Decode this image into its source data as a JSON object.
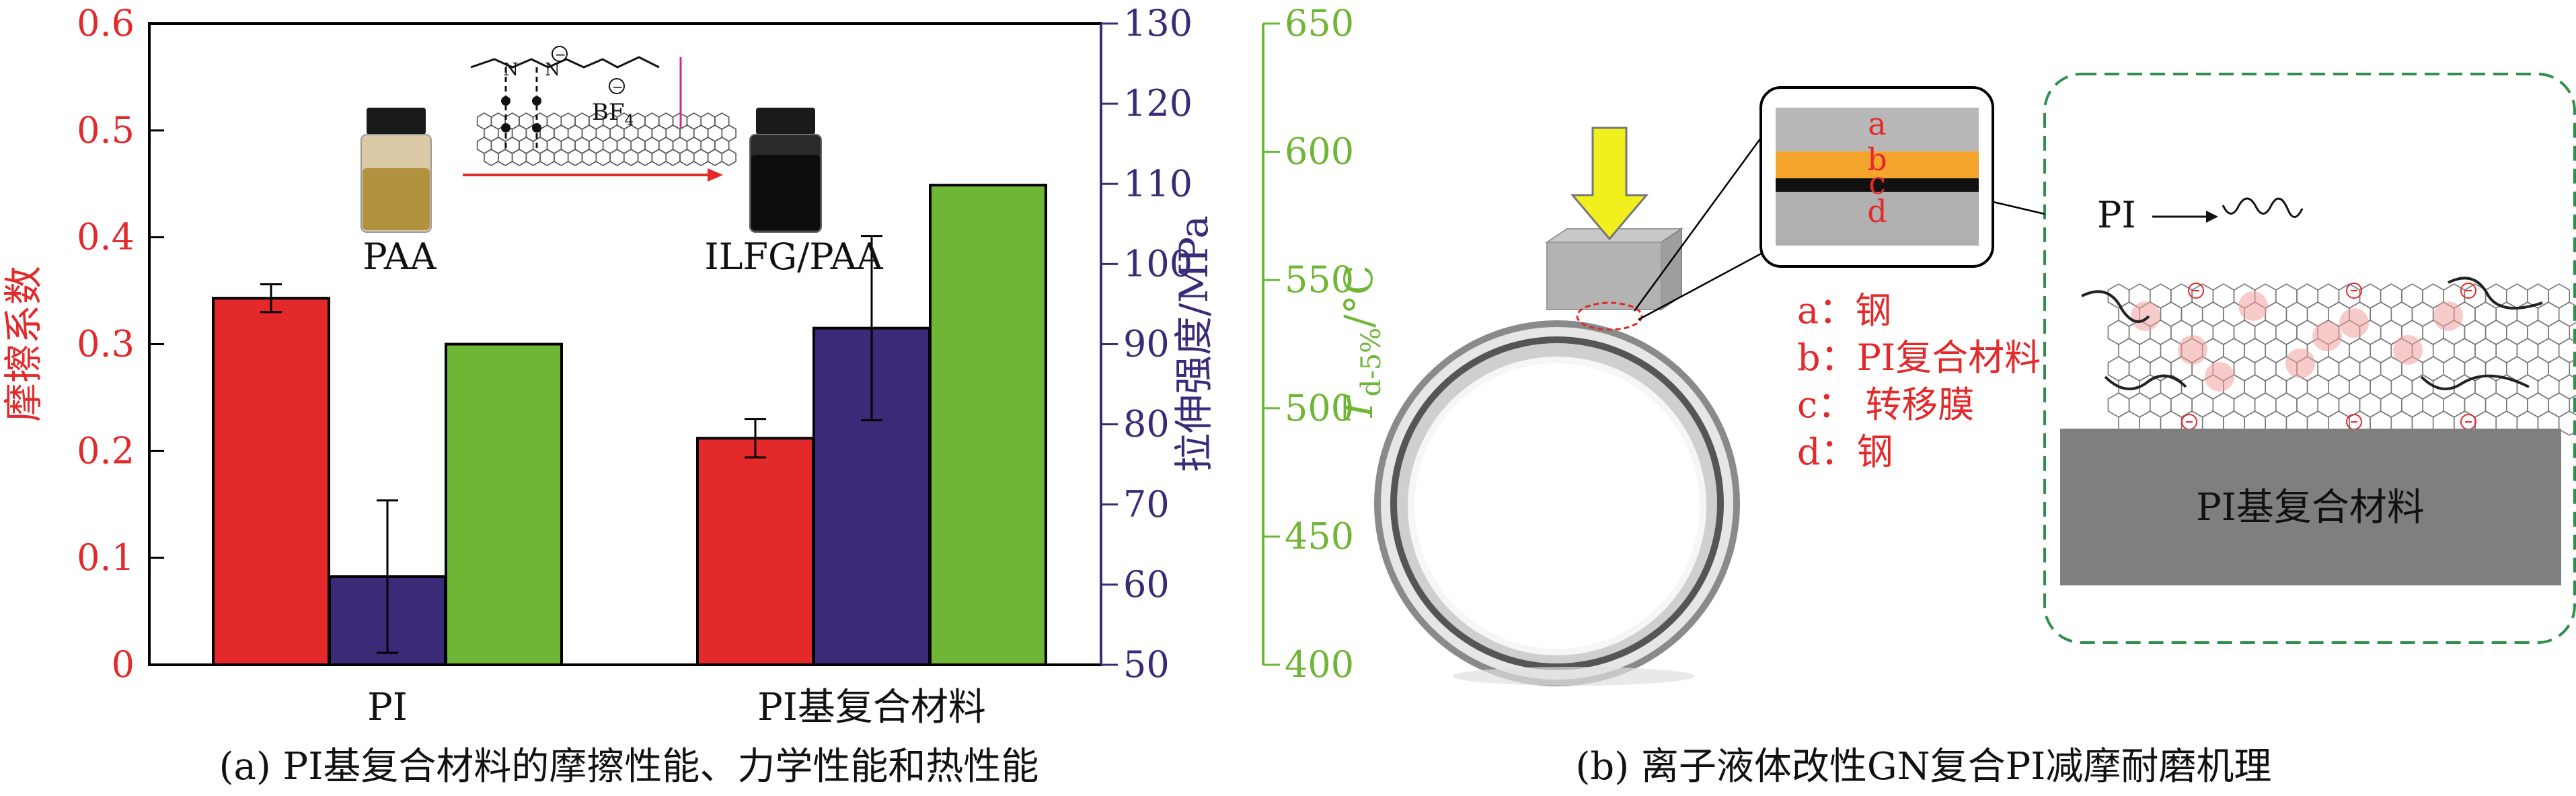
{
  "colors": {
    "friction": "#e3292a",
    "tensile": "#3b2a78",
    "thermal": "#6fb536",
    "red_text": "#e3292a",
    "dash_green": "#2f8f4a"
  },
  "chart_data": {
    "type": "bar",
    "categories": [
      "PI",
      "PI基复合材料"
    ],
    "series": [
      {
        "name": "摩擦系数",
        "axis": "left",
        "values": [
          0.343,
          0.212
        ],
        "error": [
          0.013,
          0.018
        ]
      },
      {
        "name": "拉伸强度/MPa",
        "axis": "right1",
        "values": [
          61.0,
          92.0
        ],
        "error": [
          9.5,
          11.5
        ]
      },
      {
        "name": "Td-5%/°C",
        "axis": "right2",
        "values": [
          525,
          587
        ]
      }
    ],
    "axes": {
      "left": {
        "label": "摩擦系数",
        "ylim": [
          0,
          0.6
        ],
        "ticks": [
          "0",
          "0.1",
          "0.2",
          "0.3",
          "0.4",
          "0.5",
          "0.6"
        ]
      },
      "right1": {
        "label": "拉伸强度/MPa",
        "ylim": [
          50,
          130
        ],
        "ticks": [
          "50",
          "60",
          "70",
          "80",
          "90",
          "100",
          "110",
          "120",
          "130"
        ]
      },
      "right2": {
        "label_main": "T",
        "label_sub": "d-5%",
        "label_unit": "/°C",
        "ylim": [
          400,
          650
        ],
        "ticks": [
          "400",
          "450",
          "500",
          "550",
          "600",
          "650"
        ]
      }
    },
    "grid": false
  },
  "panel_a": {
    "caption": "(a) PI基复合材料的摩擦性能、力学性能和热性能",
    "vial_left_label": "PAA",
    "vial_right_label": "ILFG/PAA",
    "molecule_bf": "BF",
    "molecule_sub": "4"
  },
  "panel_b": {
    "caption": "(b) 离子液体改性GN复合PI减摩耐磨机理",
    "layer_letters": [
      "a",
      "b",
      "c",
      "d"
    ],
    "legend": [
      "a：钢",
      "b：PI复合材料",
      "c： 转移膜",
      "d：钢"
    ],
    "pi_label": "PI",
    "block_label": "PI基复合材料"
  }
}
